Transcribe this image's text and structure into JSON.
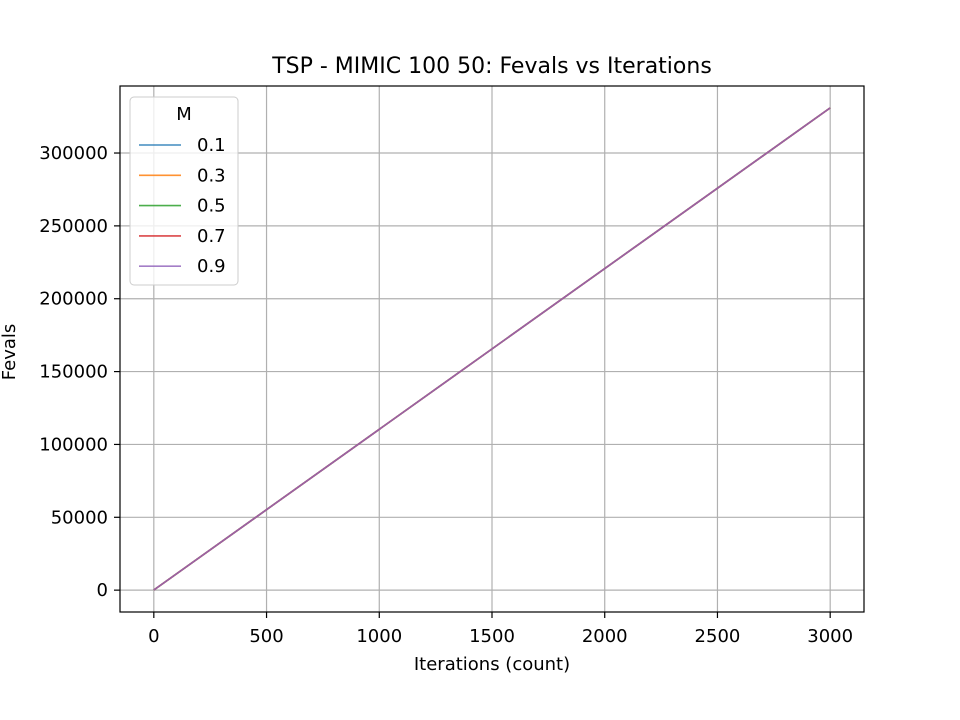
{
  "chart_data": {
    "type": "line",
    "title": "TSP - MIMIC 100 50: Fevals vs Iterations",
    "xlabel": "Iterations (count)",
    "ylabel": "Fevals",
    "xlim": [
      -150,
      3150
    ],
    "ylim": [
      -15000,
      346000
    ],
    "xticks": [
      0,
      500,
      1000,
      1500,
      2000,
      2500,
      3000
    ],
    "yticks": [
      0,
      50000,
      100000,
      150000,
      200000,
      250000,
      300000
    ],
    "grid": true,
    "legend": {
      "title": "M",
      "placement": "top-left"
    },
    "series": [
      {
        "name": "0.1",
        "color": "#1f77b4",
        "x": [
          0,
          3000
        ],
        "y": [
          101,
          331000
        ]
      },
      {
        "name": "0.3",
        "color": "#ff7f0e",
        "x": [
          0,
          3000
        ],
        "y": [
          101,
          331000
        ]
      },
      {
        "name": "0.5",
        "color": "#2ca02c",
        "x": [
          0,
          3000
        ],
        "y": [
          101,
          331000
        ]
      },
      {
        "name": "0.7",
        "color": "#d62728",
        "x": [
          0,
          3000
        ],
        "y": [
          101,
          331000
        ]
      },
      {
        "name": "0.9",
        "color": "#9467bd",
        "x": [
          0,
          3000
        ],
        "y": [
          101,
          331000
        ]
      }
    ]
  }
}
